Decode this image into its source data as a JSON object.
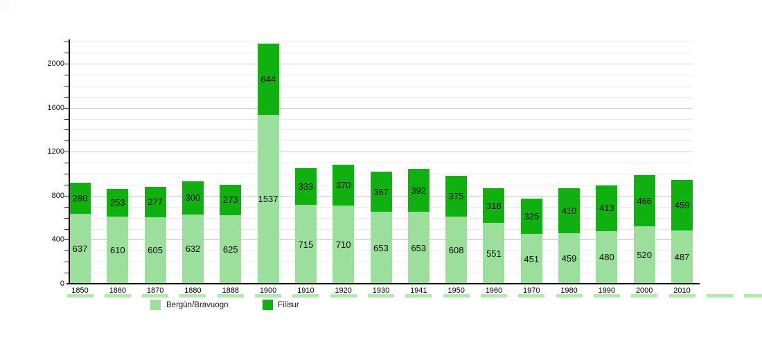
{
  "chart_data": {
    "type": "bar",
    "stacked": true,
    "title": "",
    "xlabel": "",
    "ylabel": "",
    "categories": [
      "1850",
      "1860",
      "1870",
      "1880",
      "1888",
      "1900",
      "1910",
      "1920",
      "1930",
      "1941",
      "1950",
      "1960",
      "1970",
      "1980",
      "1990",
      "2000",
      "2010"
    ],
    "series": [
      {
        "name": "Bergün/Bravuogn",
        "color": "#9cdf9c",
        "values": [
          637,
          610,
          605,
          632,
          625,
          1537,
          715,
          710,
          653,
          653,
          608,
          551,
          451,
          459,
          480,
          520,
          487
        ]
      },
      {
        "name": "Filisur",
        "color": "#10b010",
        "values": [
          280,
          253,
          277,
          300,
          273,
          644,
          333,
          370,
          367,
          392,
          375,
          318,
          325,
          410,
          413,
          466,
          459
        ]
      }
    ],
    "totals": [
      917,
      863,
      882,
      932,
      898,
      2181,
      1048,
      1080,
      1020,
      1045,
      983,
      869,
      776,
      869,
      893,
      986,
      946
    ],
    "ylim": [
      0,
      2200
    ],
    "y_major_ticks": [
      0,
      400,
      800,
      1200,
      1600,
      2000
    ],
    "y_minor_step": 100,
    "grid": true,
    "legend_position": "bottom"
  }
}
